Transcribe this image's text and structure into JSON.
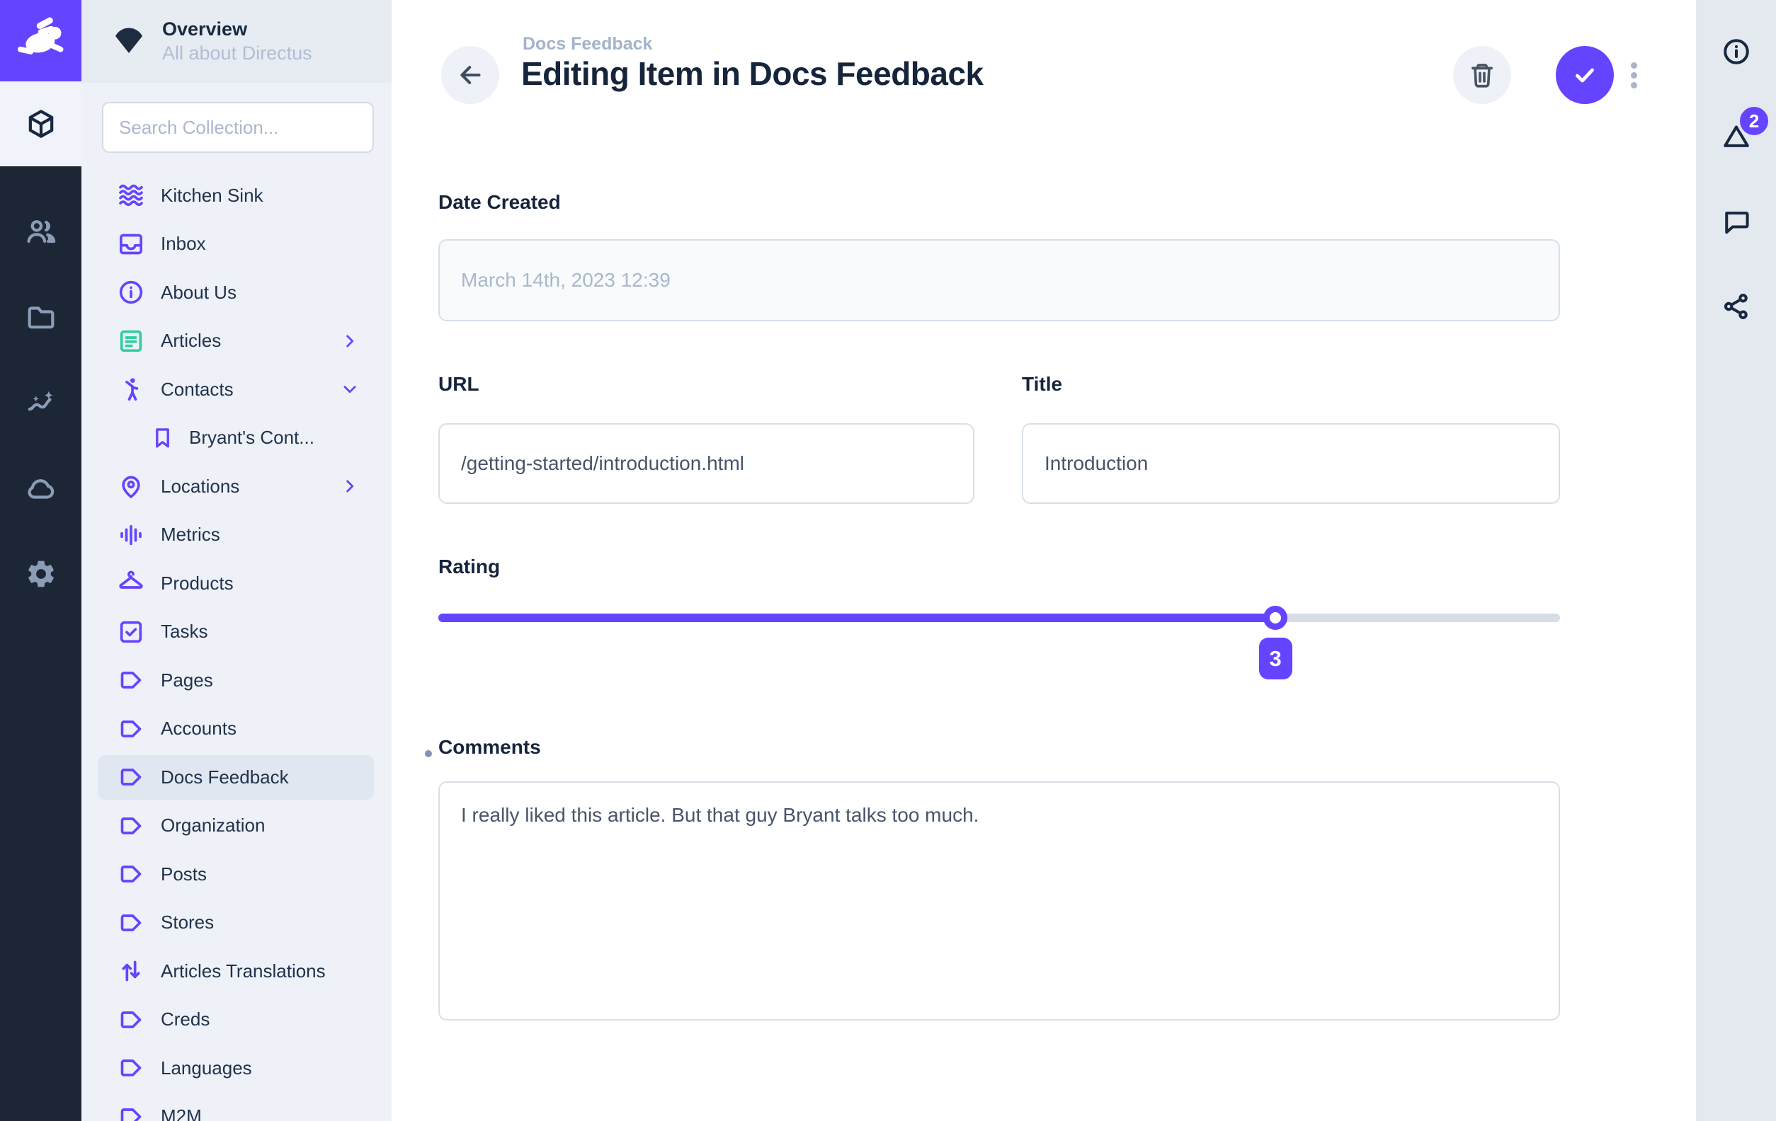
{
  "brand": {
    "accent_color": "#6644ff",
    "dark_color": "#1d2635"
  },
  "module_rail": {
    "modules": [
      {
        "icon": "box",
        "active": true
      },
      {
        "icon": "people",
        "active": false
      },
      {
        "icon": "folder",
        "active": false
      },
      {
        "icon": "insights",
        "active": false
      },
      {
        "icon": "cloud",
        "active": false
      },
      {
        "icon": "settings",
        "active": false
      }
    ]
  },
  "sidebar": {
    "project": {
      "title": "Overview",
      "subtitle": "All about Directus"
    },
    "search": {
      "placeholder": "Search Collection..."
    },
    "collections": [
      {
        "label": "Kitchen Sink",
        "icon": "waves"
      },
      {
        "label": "Inbox",
        "icon": "inbox"
      },
      {
        "label": "About Us",
        "icon": "info"
      },
      {
        "label": "Articles",
        "icon": "article",
        "color": "#2ecda2",
        "chevron": "right"
      },
      {
        "label": "Contacts",
        "icon": "person",
        "chevron": "down"
      },
      {
        "label": "Bryant's Cont...",
        "icon": "bookmark",
        "child": true
      },
      {
        "label": "Locations",
        "icon": "pin",
        "chevron": "right"
      },
      {
        "label": "Metrics",
        "icon": "eq"
      },
      {
        "label": "Products",
        "icon": "hanger"
      },
      {
        "label": "Tasks",
        "icon": "checkbox"
      },
      {
        "label": "Pages",
        "icon": "tag"
      },
      {
        "label": "Accounts",
        "icon": "tag"
      },
      {
        "label": "Docs Feedback",
        "icon": "tag",
        "selected": true
      },
      {
        "label": "Organization",
        "icon": "tag"
      },
      {
        "label": "Posts",
        "icon": "tag"
      },
      {
        "label": "Stores",
        "icon": "tag"
      },
      {
        "label": "Articles Translations",
        "icon": "swap"
      },
      {
        "label": "Creds",
        "icon": "tag"
      },
      {
        "label": "Languages",
        "icon": "tag"
      },
      {
        "label": "M2M",
        "icon": "tag"
      }
    ]
  },
  "header": {
    "breadcrumb": "Docs Feedback",
    "title": "Editing Item in Docs Feedback"
  },
  "form": {
    "date_created": {
      "label": "Date Created",
      "value": "March 14th, 2023 12:39"
    },
    "url": {
      "label": "URL",
      "value": "/getting-started/introduction.html"
    },
    "title": {
      "label": "Title",
      "value": "Introduction"
    },
    "rating": {
      "label": "Rating",
      "value": "3",
      "percent": 74.6
    },
    "comments": {
      "label": "Comments",
      "value": "I really liked this article. But that guy Bryant talks too much."
    }
  },
  "right_rail": {
    "items": [
      {
        "icon": "info"
      },
      {
        "icon": "revisions",
        "badge": "2"
      },
      {
        "icon": "comment"
      },
      {
        "icon": "share"
      }
    ]
  }
}
